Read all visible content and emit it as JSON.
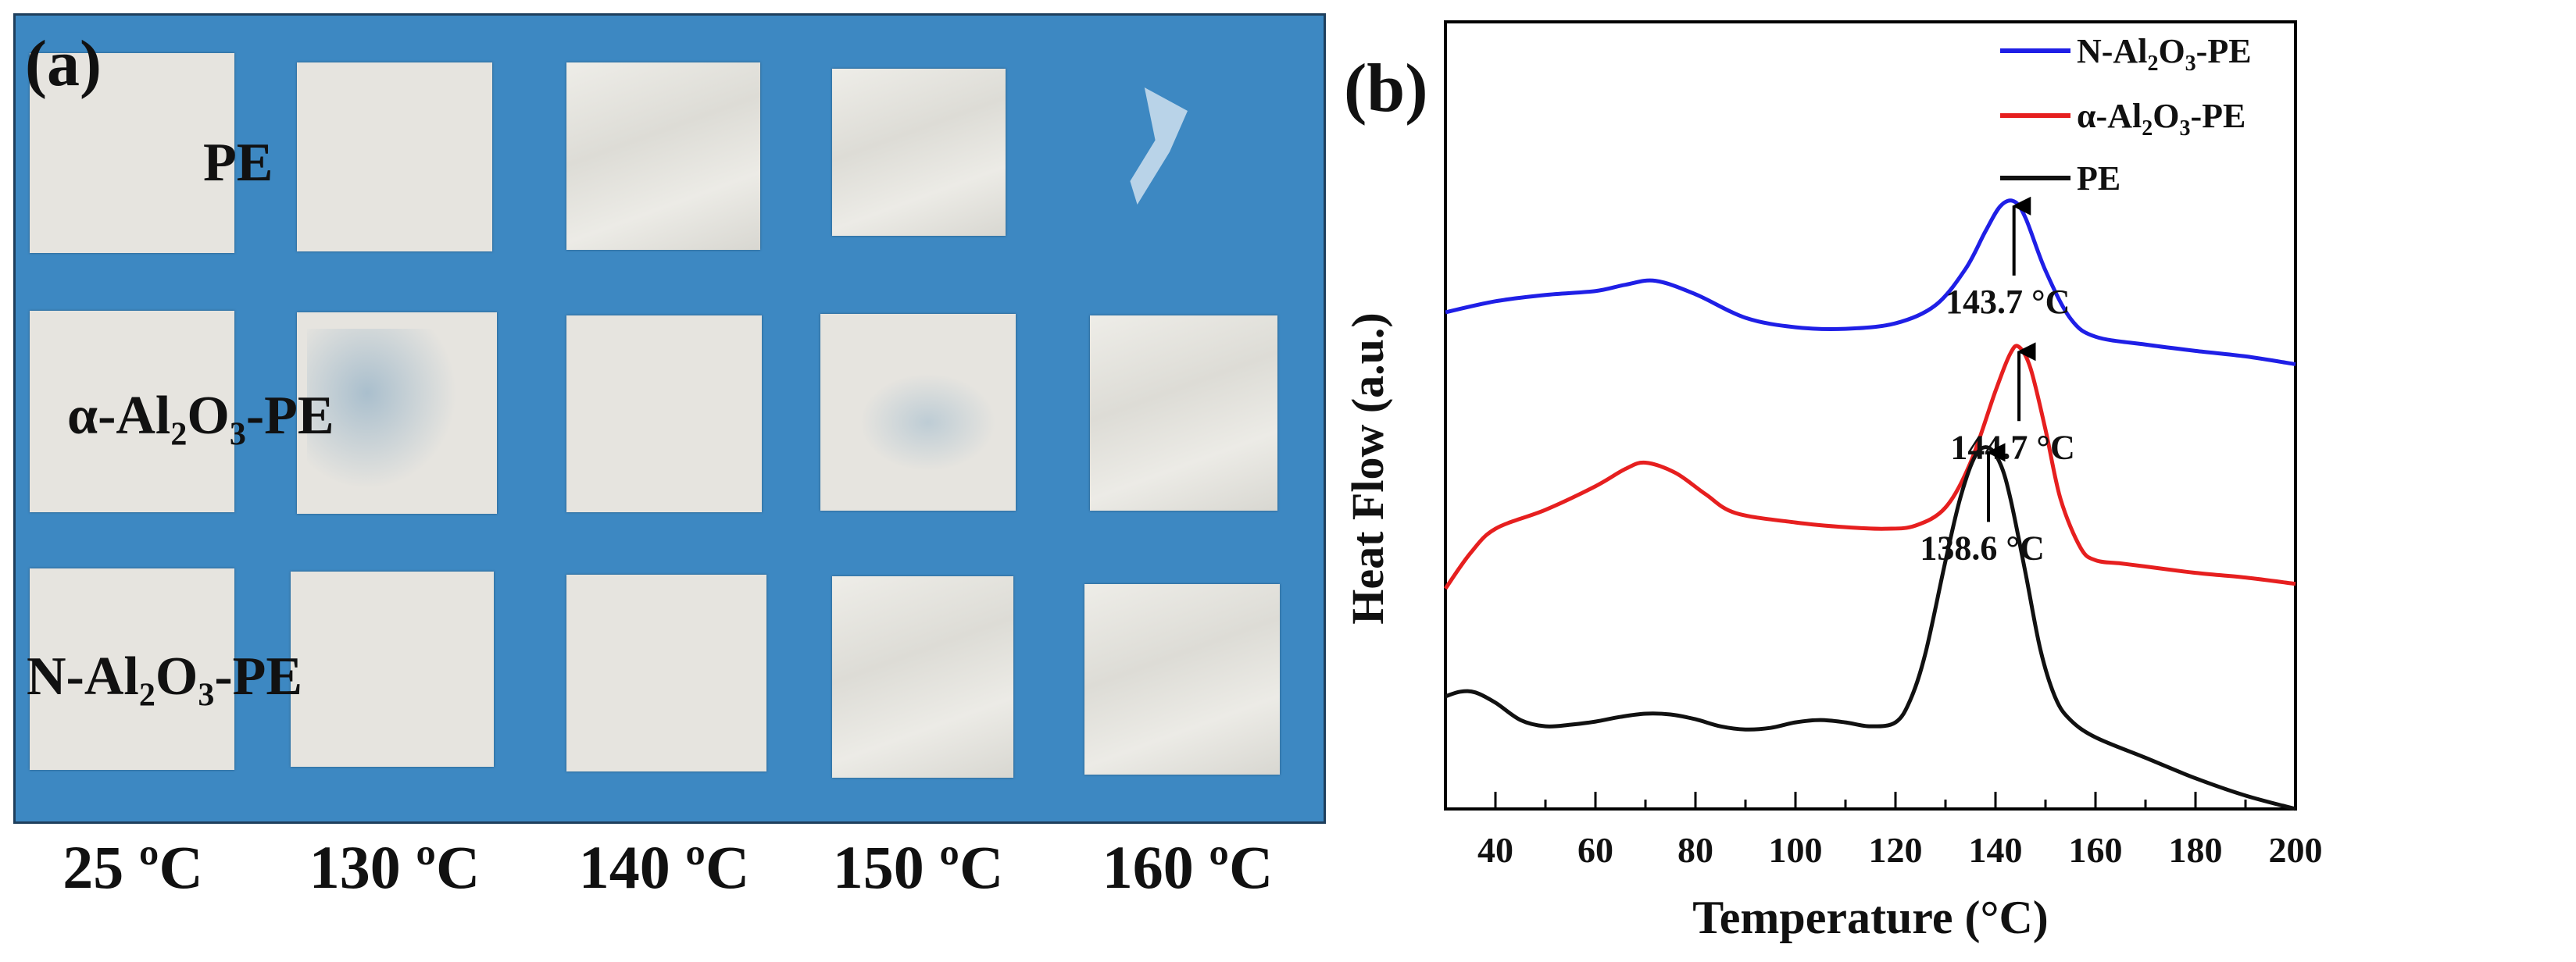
{
  "panel_a": {
    "label": "(a)",
    "row_labels": {
      "pe": "PE",
      "alpha": {
        "p1": "α-Al",
        "s1": "2",
        "p2": "O",
        "s2": "3",
        "p3": "-PE"
      },
      "n": {
        "p1": "N-Al",
        "s1": "2",
        "p2": "O",
        "s2": "3",
        "p3": "-PE"
      }
    },
    "temperatures": [
      "25 ºC",
      "130 ºC",
      "140 ºC",
      "150 ºC",
      "160 ºC"
    ]
  },
  "panel_b": {
    "label": "(b)",
    "legend": {
      "n": {
        "p1": "N-Al",
        "s1": "2",
        "p2": "O",
        "s2": "3",
        "p3": "-PE"
      },
      "alpha": {
        "p1": "α-Al",
        "s1": "2",
        "p2": "O",
        "s2": "3",
        "p3": "-PE"
      },
      "pe": "PE"
    }
  },
  "chart_data": {
    "type": "line",
    "xlabel": "Temperature (°C)",
    "ylabel": "Heat Flow (a.u.)",
    "xlim": [
      30,
      200
    ],
    "xticks": [
      40,
      60,
      80,
      100,
      120,
      140,
      160,
      180,
      200
    ],
    "ylim": [
      0,
      1
    ],
    "y_ticks_shown": false,
    "colors": {
      "n": "#1f1fe6",
      "alpha": "#e61f1f",
      "pe": "#111111"
    },
    "series": [
      {
        "name": "N-Al2O3-PE",
        "key": "n",
        "x": [
          30,
          40,
          50,
          60,
          66,
          72,
          80,
          90,
          100,
          110,
          120,
          128,
          134,
          138,
          141,
          143.7,
          146,
          150,
          155,
          160,
          170,
          180,
          190,
          200
        ],
        "y": [
          0.631,
          0.645,
          0.653,
          0.658,
          0.666,
          0.671,
          0.654,
          0.624,
          0.612,
          0.61,
          0.617,
          0.64,
          0.686,
          0.734,
          0.766,
          0.772,
          0.751,
          0.684,
          0.623,
          0.6,
          0.59,
          0.582,
          0.575,
          0.565
        ]
      },
      {
        "name": "α-Al2O3-PE",
        "key": "alpha",
        "x": [
          30,
          35,
          40,
          50,
          60,
          66,
          70,
          76,
          82,
          88,
          100,
          110,
          118,
          124,
          130,
          135,
          140,
          143,
          144.7,
          147,
          150,
          153,
          157,
          160,
          165,
          170,
          180,
          190,
          200
        ],
        "y": [
          0.28,
          0.325,
          0.356,
          0.38,
          0.41,
          0.432,
          0.44,
          0.427,
          0.4,
          0.376,
          0.364,
          0.358,
          0.356,
          0.36,
          0.383,
          0.44,
          0.531,
          0.579,
          0.587,
          0.56,
          0.482,
          0.394,
          0.332,
          0.316,
          0.312,
          0.308,
          0.3,
          0.294,
          0.286
        ]
      },
      {
        "name": "PE",
        "key": "pe",
        "x": [
          30,
          33,
          36,
          40,
          45,
          50,
          55,
          60,
          65,
          70,
          75,
          80,
          85,
          90,
          95,
          100,
          105,
          110,
          115,
          120,
          123,
          126,
          130,
          133,
          136,
          138.6,
          141,
          143,
          146,
          149,
          152,
          155,
          160,
          170,
          180,
          190,
          200
        ],
        "y": [
          0.143,
          0.149,
          0.148,
          0.135,
          0.113,
          0.105,
          0.107,
          0.111,
          0.117,
          0.121,
          0.12,
          0.114,
          0.105,
          0.101,
          0.103,
          0.11,
          0.113,
          0.11,
          0.105,
          0.11,
          0.139,
          0.198,
          0.315,
          0.396,
          0.449,
          0.459,
          0.438,
          0.394,
          0.3,
          0.202,
          0.141,
          0.113,
          0.091,
          0.065,
          0.039,
          0.017,
          0.0
        ]
      }
    ],
    "annotations": [
      {
        "series": "n",
        "x": 143.7,
        "text": "143.7 °C"
      },
      {
        "series": "alpha",
        "x": 144.7,
        "text": "144.7 °C"
      },
      {
        "series": "pe",
        "x": 138.6,
        "text": "138.6 °C"
      }
    ]
  }
}
